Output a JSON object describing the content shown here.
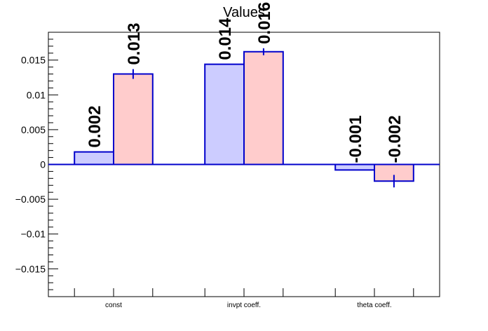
{
  "chart_data": {
    "type": "bar",
    "title": "Values",
    "xlabel": "",
    "ylabel": "",
    "categories": [
      "const",
      "invpt coeff.",
      "theta coeff."
    ],
    "ylim": [
      -0.019,
      0.019
    ],
    "yticks": [
      -0.015,
      -0.01,
      -0.005,
      0,
      0.005,
      0.01,
      0.015
    ],
    "ytick_labels": [
      "−0.015",
      "−0.01",
      "−0.005",
      "0",
      "0.005",
      "0.01",
      "0.015"
    ],
    "series": [
      {
        "values": [
          0.0018,
          0.0144,
          -0.0008
        ],
        "errors": [
          0,
          0,
          0
        ],
        "labels": [
          "0.002",
          "0.014",
          "-0.001"
        ],
        "fill": "#ccccff",
        "stroke": "#0000cc"
      },
      {
        "values": [
          0.013,
          0.0162,
          -0.0024
        ],
        "errors": [
          0.0007,
          0.0005,
          0.0009
        ],
        "labels": [
          "0.013",
          "0.016",
          "-0.002"
        ],
        "fill": "#ffcccc",
        "stroke": "#0000cc"
      }
    ],
    "grid": false,
    "legend": "none"
  }
}
